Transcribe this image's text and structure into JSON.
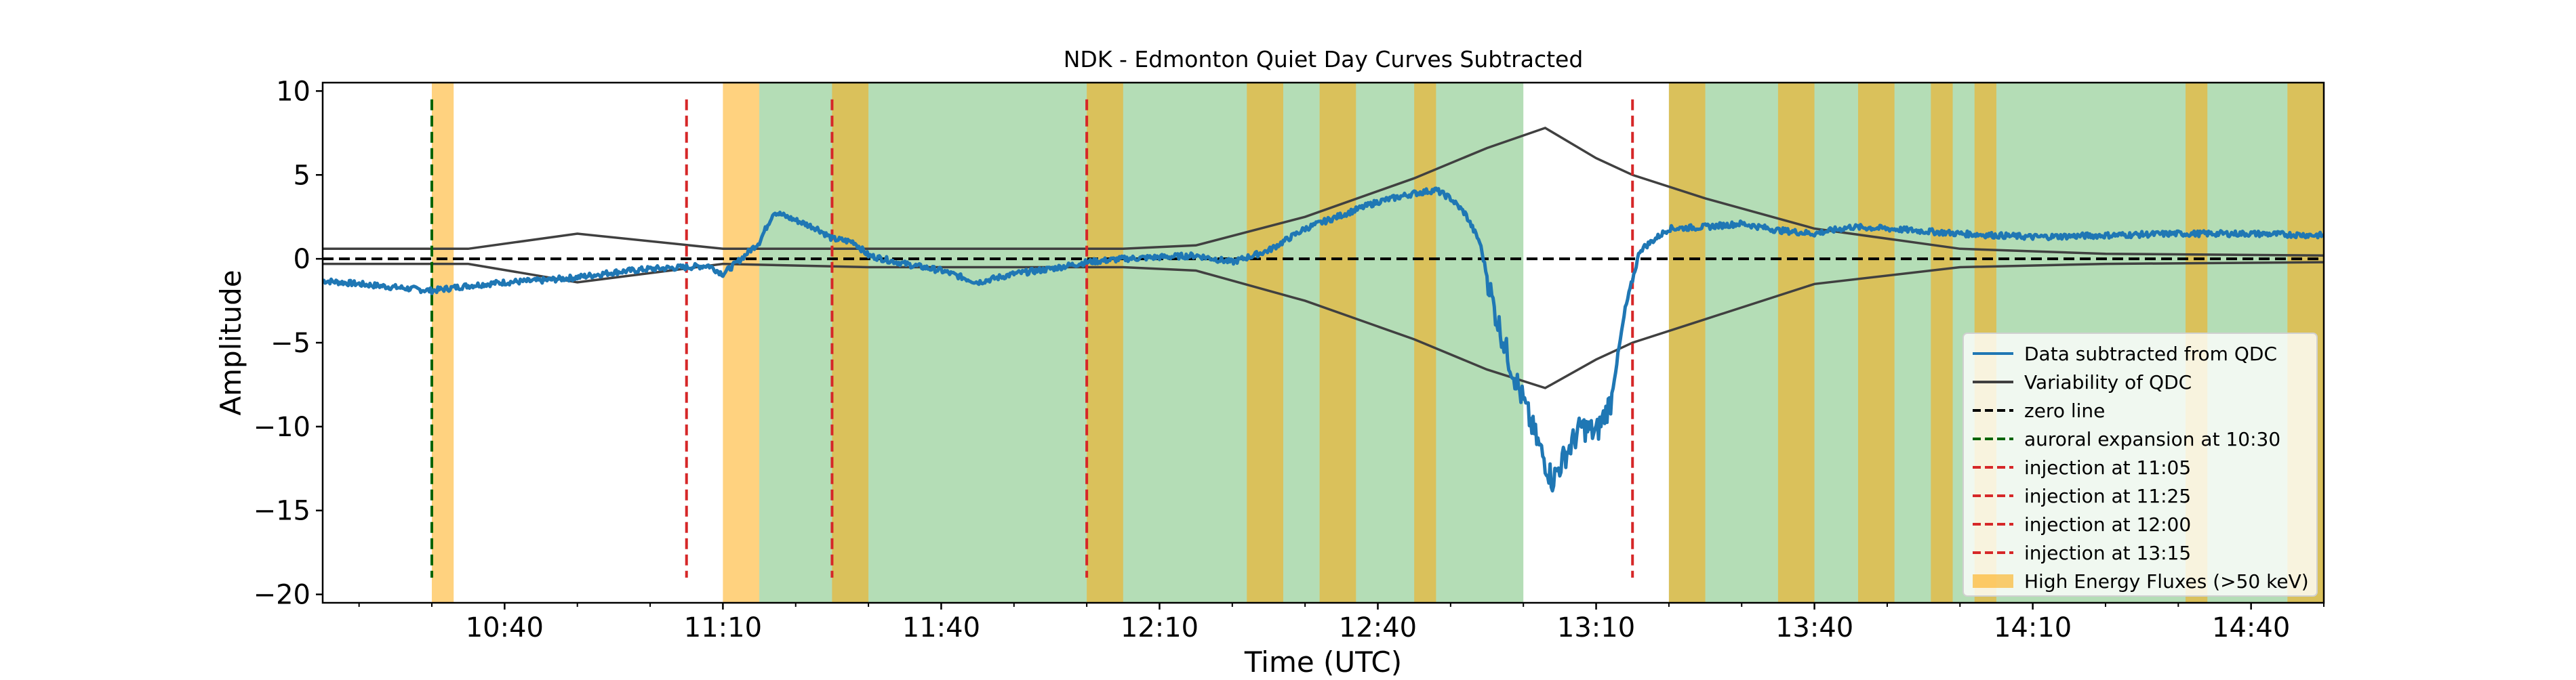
{
  "chart_data": {
    "type": "line",
    "title": "NDK - Edmonton  Quiet Day Curves Subtracted",
    "xlabel": "Time (UTC)",
    "ylabel": "Amplitude",
    "xlim": [
      "10:15",
      "14:50"
    ],
    "ylim": [
      -20.5,
      10.5
    ],
    "x_ticks": [
      "10:40",
      "11:10",
      "11:40",
      "12:10",
      "12:40",
      "13:10",
      "13:40",
      "14:10",
      "14:40"
    ],
    "y_ticks": [
      10,
      5,
      0,
      -5,
      -10,
      -15,
      -20
    ],
    "legend_position": "lower-right",
    "green_regions": [
      [
        "11:15",
        "13:00"
      ],
      [
        "13:20",
        "14:50"
      ]
    ],
    "high_energy_regions": [
      [
        "10:30",
        "10:33"
      ],
      [
        "11:10",
        "11:15"
      ],
      [
        "11:25",
        "11:30"
      ],
      [
        "12:00",
        "12:05"
      ],
      [
        "12:22",
        "12:27"
      ],
      [
        "12:32",
        "12:37"
      ],
      [
        "12:45",
        "12:48"
      ],
      [
        "13:20",
        "13:25"
      ],
      [
        "13:35",
        "13:40"
      ],
      [
        "13:46",
        "13:51"
      ],
      [
        "13:56",
        "13:59"
      ],
      [
        "14:02",
        "14:05"
      ],
      [
        "14:31",
        "14:34"
      ],
      [
        "14:45",
        "14:50"
      ]
    ],
    "vlines": [
      {
        "time": "10:30",
        "color": "#006400",
        "y_range": [
          -19,
          9.5
        ]
      },
      {
        "time": "11:05",
        "color": "#d62728",
        "y_range": [
          -19,
          9.5
        ]
      },
      {
        "time": "11:25",
        "color": "#d62728",
        "y_range": [
          -19,
          9.5
        ]
      },
      {
        "time": "12:00",
        "color": "#d62728",
        "y_range": [
          -19,
          9.5
        ]
      },
      {
        "time": "13:15",
        "color": "#d62728",
        "y_range": [
          -19,
          9.5
        ]
      }
    ],
    "series": [
      {
        "name": "Data subtracted from QDC",
        "color": "#1f77b4",
        "x": [
          "10:15",
          "10:20",
          "10:25",
          "10:30",
          "10:35",
          "10:40",
          "10:45",
          "10:50",
          "10:55",
          "11:00",
          "11:05",
          "11:08",
          "11:10",
          "11:12",
          "11:15",
          "11:17",
          "11:20",
          "11:23",
          "11:25",
          "11:28",
          "11:30",
          "11:35",
          "11:40",
          "11:45",
          "11:50",
          "11:55",
          "12:00",
          "12:05",
          "12:10",
          "12:15",
          "12:20",
          "12:25",
          "12:30",
          "12:35",
          "12:40",
          "12:45",
          "12:48",
          "12:50",
          "12:52",
          "12:54",
          "12:56",
          "12:58",
          "13:00",
          "13:02",
          "13:04",
          "13:06",
          "13:08",
          "13:10",
          "13:12",
          "13:14",
          "13:16",
          "13:20",
          "13:25",
          "13:30",
          "13:35",
          "13:40",
          "13:45",
          "13:50",
          "14:00",
          "14:10",
          "14:20",
          "14:30",
          "14:40",
          "14:50"
        ],
        "y": [
          -1.3,
          -1.5,
          -1.7,
          -1.9,
          -1.6,
          -1.4,
          -1.3,
          -1.1,
          -0.8,
          -0.6,
          -0.5,
          -0.4,
          -0.9,
          -0.2,
          1.0,
          2.8,
          2.3,
          1.8,
          1.2,
          1.0,
          0.2,
          -0.3,
          -0.7,
          -1.4,
          -0.9,
          -0.6,
          -0.2,
          0.0,
          0.1,
          0.2,
          -0.2,
          0.5,
          1.8,
          2.6,
          3.4,
          3.9,
          4.1,
          3.6,
          2.7,
          1.0,
          -3.0,
          -6.0,
          -8.5,
          -11.0,
          -13.2,
          -11.5,
          -10.0,
          -10.4,
          -8.5,
          -3.0,
          0.5,
          1.8,
          1.9,
          2.1,
          1.7,
          1.5,
          1.9,
          1.8,
          1.5,
          1.3,
          1.4,
          1.5,
          1.5,
          1.4
        ]
      },
      {
        "name": "Variability of QDC",
        "color": "#404040",
        "x": [
          "10:15",
          "10:35",
          "10:50",
          "11:10",
          "11:30",
          "12:05",
          "12:15",
          "12:30",
          "12:45",
          "12:55",
          "13:03",
          "13:10",
          "13:15",
          "13:25",
          "13:40",
          "14:00",
          "14:20",
          "14:50"
        ],
        "upper": [
          0.6,
          0.6,
          1.5,
          0.6,
          0.6,
          0.6,
          0.8,
          2.5,
          4.8,
          6.6,
          7.8,
          6.0,
          5.0,
          3.6,
          1.8,
          0.6,
          0.3,
          0.2
        ],
        "lower": [
          -0.3,
          -0.3,
          -1.4,
          -0.3,
          -0.5,
          -0.5,
          -0.7,
          -2.5,
          -4.8,
          -6.6,
          -7.7,
          -6.0,
          -5.0,
          -3.6,
          -1.5,
          -0.5,
          -0.3,
          -0.2
        ]
      }
    ],
    "legend": [
      {
        "label": "Data subtracted from QDC",
        "style": "solid",
        "color": "#1f77b4"
      },
      {
        "label": "Variability of QDC",
        "style": "solid",
        "color": "#404040"
      },
      {
        "label": "zero line",
        "style": "dashed",
        "color": "#000000"
      },
      {
        "label": "auroral expansion at 10:30",
        "style": "dashed",
        "color": "#006400"
      },
      {
        "label": "injection at 11:05",
        "style": "dashed",
        "color": "#d62728"
      },
      {
        "label": "injection at 11:25",
        "style": "dashed",
        "color": "#d62728"
      },
      {
        "label": "injection at 12:00",
        "style": "dashed",
        "color": "#d62728"
      },
      {
        "label": "injection at 13:15",
        "style": "dashed",
        "color": "#d62728"
      },
      {
        "label": "High Energy Fluxes (>50 keV)",
        "style": "patch",
        "color": "#ffa500"
      }
    ],
    "colors": {
      "green_region": "#4caf50",
      "high_energy": "#ffa500",
      "zero_line": "#000000"
    }
  }
}
